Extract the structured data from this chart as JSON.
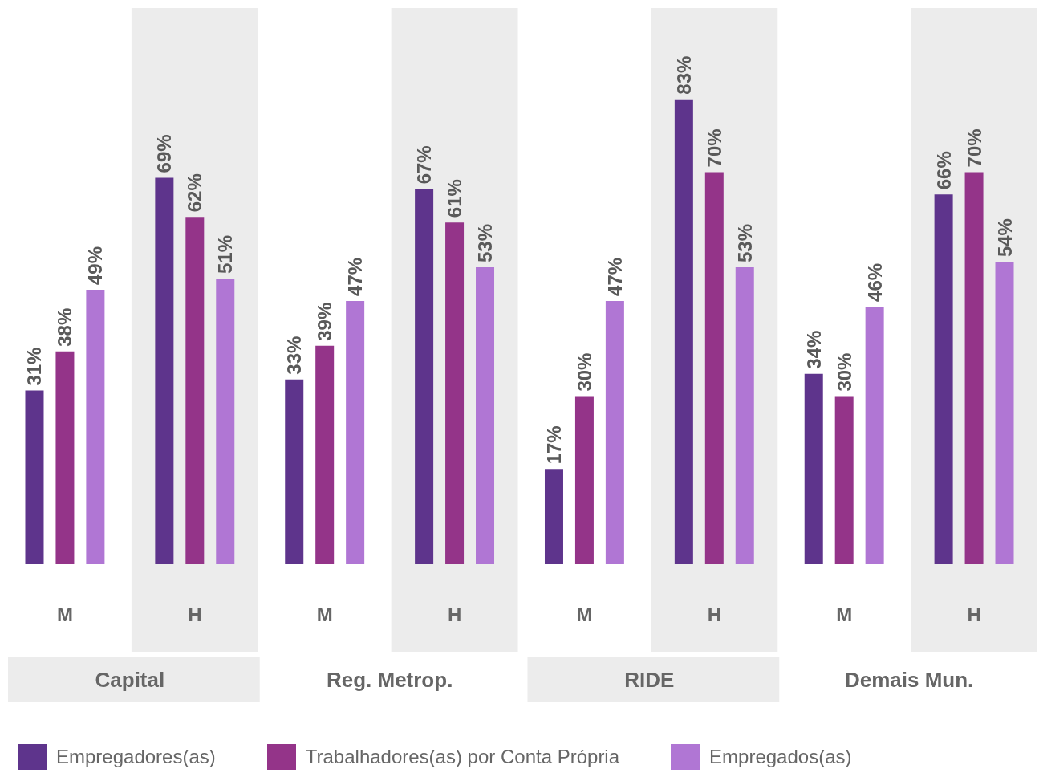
{
  "chart_data": {
    "type": "bar",
    "categories": [
      "M",
      "H",
      "M",
      "H",
      "M",
      "H",
      "M",
      "H"
    ],
    "series": [
      {
        "name": "Empregadores(as)",
        "color": "#5e348c",
        "values": [
          31,
          69,
          33,
          67,
          17,
          83,
          34,
          66
        ],
        "value_labels": [
          "31%",
          "69%",
          "33%",
          "67%",
          "17%",
          "83%",
          "34%",
          "66%"
        ]
      },
      {
        "name": "Trabalhadores(as) por Conta Própria",
        "color": "#943489",
        "values": [
          38,
          62,
          39,
          61,
          30,
          70,
          30,
          70
        ],
        "value_labels": [
          "38%",
          "62%",
          "39%",
          "61%",
          "30%",
          "70%",
          "30%",
          "70%"
        ]
      },
      {
        "name": "Empregados(as)",
        "color": "#b076d4",
        "values": [
          49,
          51,
          47,
          53,
          47,
          53,
          46,
          54
        ],
        "value_labels": [
          "49%",
          "51%",
          "47%",
          "53%",
          "47%",
          "53%",
          "46%",
          "54%"
        ]
      }
    ],
    "annotations": [
      "Capital",
      "Reg. Metrop.",
      "RIDE",
      "Demais Mun."
    ],
    "grid": false,
    "legend": "bottom"
  }
}
